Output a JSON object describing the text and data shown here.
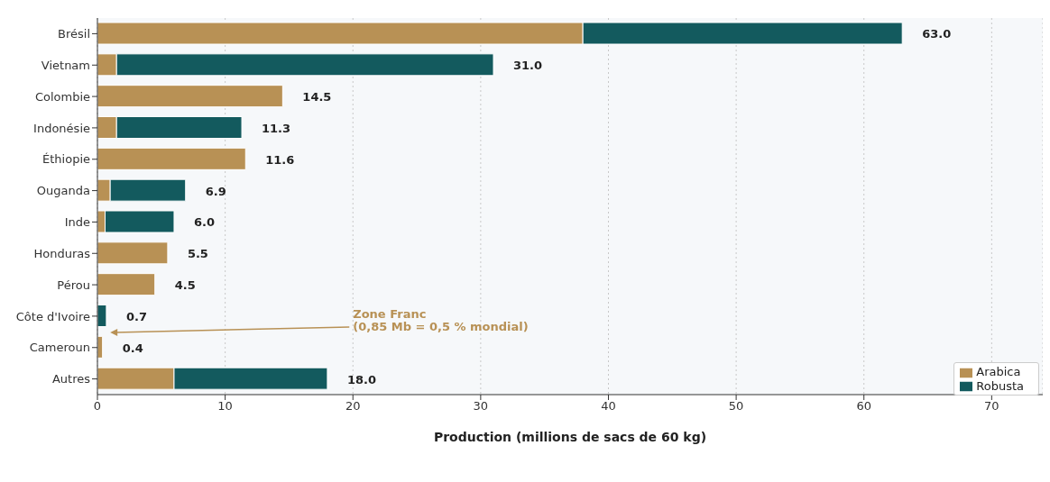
{
  "chart_data": {
    "type": "bar",
    "orientation": "horizontal",
    "stacked": true,
    "categories": [
      "Brésil",
      "Vietnam",
      "Colombie",
      "Indonésie",
      "Éthiopie",
      "Ouganda",
      "Inde",
      "Honduras",
      "Pérou",
      "Côte d'Ivoire",
      "Cameroun",
      "Autres"
    ],
    "series": [
      {
        "name": "Arabica",
        "color": "#b89155",
        "values": [
          38,
          1.5,
          14.5,
          1.5,
          11.6,
          1.0,
          0.6,
          5.5,
          4.5,
          0,
          0.4,
          6
        ]
      },
      {
        "name": "Robusta",
        "color": "#135a5e",
        "values": [
          25,
          29.5,
          0,
          9.8,
          0,
          5.9,
          5.4,
          0,
          0,
          0.7,
          0,
          12
        ]
      }
    ],
    "totals": [
      "63.0",
      "31.0",
      "14.5",
      "11.3",
      "11.6",
      "6.9",
      "6.0",
      "5.5",
      "4.5",
      "0.7",
      "0.4",
      "18.0"
    ],
    "xlabel": "Production (millions de sacs de 60 kg)",
    "xlim": [
      0,
      74
    ],
    "xticks": [
      0,
      10,
      20,
      30,
      40,
      50,
      60,
      70
    ],
    "annotations": [
      {
        "text": "Zone Franc\n(0,85 Mb = 0,5 % mondial)",
        "x": 1,
        "y": "Côte d'Ivoire"
      }
    ],
    "grid": "x",
    "legend": "bottom right"
  }
}
